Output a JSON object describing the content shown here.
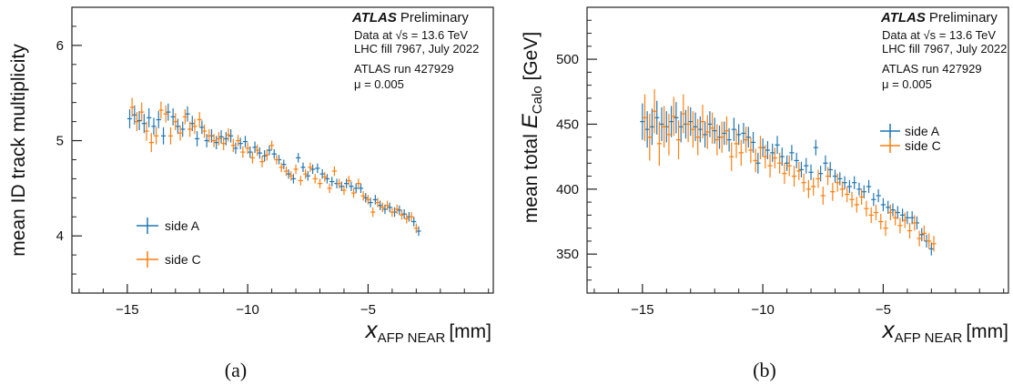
{
  "chart_data": [
    {
      "type": "scatter",
      "panel_caption": "(a)",
      "title": "",
      "ylabel": "mean ID track multiplicity",
      "xlabel_main": "x",
      "xlabel_sub": "AFP NEAR",
      "xlabel_unit": "[mm]",
      "xlim": [
        -17.3,
        0.2
      ],
      "ylim": [
        3.4,
        6.4
      ],
      "xticks": [
        -15,
        -10,
        -5
      ],
      "yticks": [
        4,
        5,
        6
      ],
      "tick_labels_x": [
        "−15",
        "−10",
        "−5"
      ],
      "tick_labels_y": [
        "4",
        "5",
        "6"
      ],
      "annotation": {
        "experiment": "ATLAS",
        "status": "Preliminary",
        "line1": "Data at √s = 13.6 TeV",
        "line2": "LHC fill 7967, July 2022",
        "line3": "ATLAS run 427929",
        "line4": "μ = 0.005"
      },
      "legend": {
        "placement": "bottom-left",
        "entries": [
          "side A",
          "side C"
        ]
      },
      "series": [
        {
          "name": "side A",
          "color": "#1f77b4",
          "x": [
            -14.9,
            -14.7,
            -14.5,
            -14.3,
            -14.1,
            -13.9,
            -13.7,
            -13.5,
            -13.3,
            -13.1,
            -12.9,
            -12.7,
            -12.5,
            -12.3,
            -12.1,
            -11.9,
            -11.7,
            -11.5,
            -11.3,
            -11.1,
            -10.9,
            -10.7,
            -10.5,
            -10.3,
            -10.1,
            -9.9,
            -9.7,
            -9.5,
            -9.3,
            -9.1,
            -8.9,
            -8.7,
            -8.5,
            -8.3,
            -8.1,
            -7.9,
            -7.7,
            -7.5,
            -7.3,
            -7.1,
            -6.9,
            -6.7,
            -6.5,
            -6.3,
            -6.1,
            -5.9,
            -5.7,
            -5.5,
            -5.3,
            -5.1,
            -4.9,
            -4.7,
            -4.5,
            -4.3,
            -4.1,
            -3.9,
            -3.7,
            -3.5,
            -3.3,
            -3.1,
            -2.9
          ],
          "y": [
            5.23,
            5.27,
            5.21,
            5.18,
            5.24,
            5.15,
            5.22,
            5.05,
            5.3,
            5.25,
            5.15,
            5.12,
            5.28,
            5.18,
            5.02,
            5.14,
            5.0,
            5.05,
            4.98,
            5.04,
            5.02,
            5.05,
            4.92,
            4.97,
            4.99,
            4.88,
            4.93,
            4.87,
            4.84,
            4.9,
            4.86,
            4.8,
            4.75,
            4.65,
            4.6,
            4.82,
            4.72,
            4.63,
            4.7,
            4.71,
            4.65,
            4.6,
            4.57,
            4.55,
            4.52,
            4.55,
            4.52,
            4.5,
            4.5,
            4.4,
            4.35,
            4.38,
            4.32,
            4.28,
            4.3,
            4.25,
            4.27,
            4.23,
            4.2,
            4.15,
            4.05
          ],
          "yerr": [
            0.1,
            0.1,
            0.1,
            0.1,
            0.1,
            0.09,
            0.09,
            0.09,
            0.09,
            0.09,
            0.08,
            0.08,
            0.08,
            0.08,
            0.08,
            0.07,
            0.07,
            0.07,
            0.07,
            0.07,
            0.07,
            0.07,
            0.06,
            0.06,
            0.06,
            0.06,
            0.06,
            0.06,
            0.06,
            0.05,
            0.05,
            0.05,
            0.05,
            0.05,
            0.05,
            0.05,
            0.05,
            0.05,
            0.05,
            0.05,
            0.05,
            0.05,
            0.05,
            0.05,
            0.05,
            0.05,
            0.05,
            0.05,
            0.05,
            0.05,
            0.05,
            0.05,
            0.05,
            0.05,
            0.05,
            0.05,
            0.05,
            0.05,
            0.05,
            0.05,
            0.05
          ]
        },
        {
          "name": "side C",
          "color": "#ff7f0e",
          "x": [
            -14.8,
            -14.6,
            -14.4,
            -14.2,
            -14.0,
            -13.8,
            -13.6,
            -13.4,
            -13.2,
            -13.0,
            -12.8,
            -12.6,
            -12.4,
            -12.2,
            -12.0,
            -11.8,
            -11.6,
            -11.4,
            -11.2,
            -11.0,
            -10.8,
            -10.6,
            -10.4,
            -10.2,
            -10.0,
            -9.8,
            -9.6,
            -9.4,
            -9.2,
            -9.0,
            -8.8,
            -8.6,
            -8.4,
            -8.2,
            -8.0,
            -7.8,
            -7.6,
            -7.4,
            -7.2,
            -7.0,
            -6.8,
            -6.6,
            -6.4,
            -6.2,
            -6.0,
            -5.8,
            -5.6,
            -5.4,
            -5.2,
            -5.0,
            -4.8,
            -4.6,
            -4.4,
            -4.2,
            -4.0,
            -3.8,
            -3.6,
            -3.4,
            -3.2,
            -3.0
          ],
          "y": [
            5.35,
            5.2,
            5.3,
            5.1,
            4.98,
            5.05,
            5.32,
            5.28,
            5.05,
            5.2,
            5.08,
            5.25,
            5.12,
            5.15,
            5.22,
            5.1,
            5.05,
            5.0,
            5.02,
            4.97,
            5.06,
            4.95,
            5.0,
            4.88,
            4.92,
            4.82,
            4.9,
            4.78,
            4.85,
            4.95,
            4.8,
            4.72,
            4.68,
            4.63,
            4.7,
            4.58,
            4.65,
            4.72,
            4.6,
            4.55,
            4.62,
            4.5,
            4.68,
            4.55,
            4.48,
            4.58,
            4.45,
            4.55,
            4.42,
            4.38,
            4.25,
            4.35,
            4.3,
            4.32,
            4.25,
            4.28,
            4.22,
            4.18,
            4.2,
            4.08
          ],
          "yerr": [
            0.1,
            0.1,
            0.1,
            0.1,
            0.1,
            0.09,
            0.09,
            0.09,
            0.09,
            0.09,
            0.08,
            0.08,
            0.08,
            0.08,
            0.08,
            0.07,
            0.07,
            0.07,
            0.07,
            0.07,
            0.07,
            0.07,
            0.06,
            0.06,
            0.06,
            0.06,
            0.06,
            0.06,
            0.06,
            0.05,
            0.05,
            0.05,
            0.05,
            0.05,
            0.05,
            0.05,
            0.05,
            0.05,
            0.05,
            0.05,
            0.05,
            0.05,
            0.05,
            0.05,
            0.05,
            0.05,
            0.05,
            0.05,
            0.05,
            0.05,
            0.05,
            0.05,
            0.05,
            0.05,
            0.05,
            0.05,
            0.05,
            0.05,
            0.05,
            0.05
          ]
        }
      ]
    },
    {
      "type": "scatter",
      "panel_caption": "(b)",
      "title": "",
      "ylabel_prefix": "mean total ",
      "ylabel_main": "E",
      "ylabel_sub": "Calo",
      "ylabel_unit": " [GeV]",
      "xlabel_main": "x",
      "xlabel_sub": "AFP NEAR",
      "xlabel_unit": "[mm]",
      "xlim": [
        -17.3,
        0.2
      ],
      "ylim": [
        320,
        540
      ],
      "xticks": [
        -15,
        -10,
        -5
      ],
      "yticks": [
        350,
        400,
        450,
        500
      ],
      "tick_labels_x": [
        "−15",
        "−10",
        "−5"
      ],
      "tick_labels_y": [
        "350",
        "400",
        "450",
        "500"
      ],
      "annotation": {
        "experiment": "ATLAS",
        "status": "Preliminary",
        "line1": "Data at √s = 13.6 TeV",
        "line2": "LHC fill 7967, July 2022",
        "line3": "ATLAS run 427929",
        "line4": "μ = 0.005"
      },
      "legend": {
        "placement": "top-right",
        "entries": [
          "side A",
          "side C"
        ]
      },
      "series": [
        {
          "name": "side A",
          "color": "#1f77b4",
          "x": [
            -15.0,
            -14.8,
            -14.6,
            -14.4,
            -14.2,
            -14.0,
            -13.8,
            -13.6,
            -13.4,
            -13.2,
            -13.0,
            -12.8,
            -12.6,
            -12.4,
            -12.2,
            -12.0,
            -11.8,
            -11.6,
            -11.4,
            -11.2,
            -11.0,
            -10.8,
            -10.6,
            -10.4,
            -10.2,
            -10.0,
            -9.8,
            -9.6,
            -9.4,
            -9.2,
            -9.0,
            -8.8,
            -8.6,
            -8.4,
            -8.2,
            -8.0,
            -7.8,
            -7.6,
            -7.4,
            -7.2,
            -7.0,
            -6.8,
            -6.6,
            -6.4,
            -6.2,
            -6.0,
            -5.8,
            -5.6,
            -5.4,
            -5.2,
            -5.0,
            -4.8,
            -4.6,
            -4.4,
            -4.2,
            -4.0,
            -3.8,
            -3.6,
            -3.4,
            -3.2,
            -3.0
          ],
          "y": [
            452,
            446,
            448,
            455,
            450,
            448,
            452,
            455,
            448,
            450,
            452,
            448,
            446,
            442,
            450,
            445,
            440,
            443,
            438,
            446,
            442,
            443,
            440,
            436,
            420,
            432,
            430,
            428,
            434,
            425,
            420,
            428,
            422,
            415,
            418,
            413,
            432,
            412,
            420,
            415,
            410,
            408,
            405,
            402,
            405,
            400,
            398,
            402,
            392,
            395,
            388,
            386,
            384,
            382,
            380,
            378,
            378,
            374,
            365,
            360,
            354
          ],
          "yerr": [
            14,
            14,
            14,
            13,
            13,
            12,
            12,
            12,
            12,
            11,
            11,
            11,
            10,
            10,
            10,
            10,
            9,
            9,
            9,
            9,
            8,
            8,
            8,
            8,
            8,
            7,
            7,
            7,
            7,
            7,
            6,
            6,
            6,
            6,
            6,
            6,
            6,
            6,
            6,
            6,
            5,
            5,
            5,
            5,
            5,
            5,
            5,
            5,
            5,
            5,
            5,
            5,
            5,
            5,
            5,
            5,
            5,
            5,
            5,
            5,
            5
          ]
        },
        {
          "name": "side C",
          "color": "#ff7f0e",
          "x": [
            -14.9,
            -14.7,
            -14.5,
            -14.3,
            -14.1,
            -13.9,
            -13.7,
            -13.5,
            -13.3,
            -13.1,
            -12.9,
            -12.7,
            -12.5,
            -12.3,
            -12.1,
            -11.9,
            -11.7,
            -11.5,
            -11.3,
            -11.1,
            -10.9,
            -10.7,
            -10.5,
            -10.3,
            -10.1,
            -9.9,
            -9.7,
            -9.5,
            -9.3,
            -9.1,
            -8.9,
            -8.7,
            -8.5,
            -8.3,
            -8.1,
            -7.9,
            -7.7,
            -7.5,
            -7.3,
            -7.1,
            -6.9,
            -6.7,
            -6.5,
            -6.3,
            -6.1,
            -5.9,
            -5.7,
            -5.5,
            -5.3,
            -5.1,
            -4.9,
            -4.7,
            -4.5,
            -4.3,
            -4.1,
            -3.9,
            -3.7,
            -3.5,
            -3.3,
            -3.1,
            -2.9
          ],
          "y": [
            455,
            440,
            460,
            435,
            448,
            442,
            456,
            438,
            458,
            450,
            446,
            440,
            452,
            444,
            447,
            438,
            440,
            445,
            425,
            435,
            428,
            438,
            430,
            422,
            432,
            425,
            418,
            424,
            420,
            412,
            418,
            410,
            414,
            405,
            400,
            402,
            408,
            395,
            410,
            398,
            405,
            400,
            396,
            392,
            388,
            394,
            385,
            380,
            382,
            375,
            370,
            382,
            378,
            372,
            376,
            368,
            374,
            362,
            366,
            360,
            358
          ],
          "yerr": [
            18,
            18,
            17,
            17,
            16,
            16,
            15,
            15,
            15,
            14,
            14,
            14,
            13,
            13,
            12,
            12,
            12,
            11,
            11,
            11,
            10,
            10,
            10,
            9,
            9,
            9,
            9,
            8,
            8,
            8,
            8,
            8,
            7,
            7,
            7,
            7,
            7,
            7,
            7,
            7,
            7,
            6,
            6,
            6,
            6,
            6,
            6,
            6,
            6,
            6,
            6,
            6,
            6,
            6,
            6,
            6,
            6,
            6,
            6,
            6,
            6
          ]
        }
      ]
    }
  ]
}
